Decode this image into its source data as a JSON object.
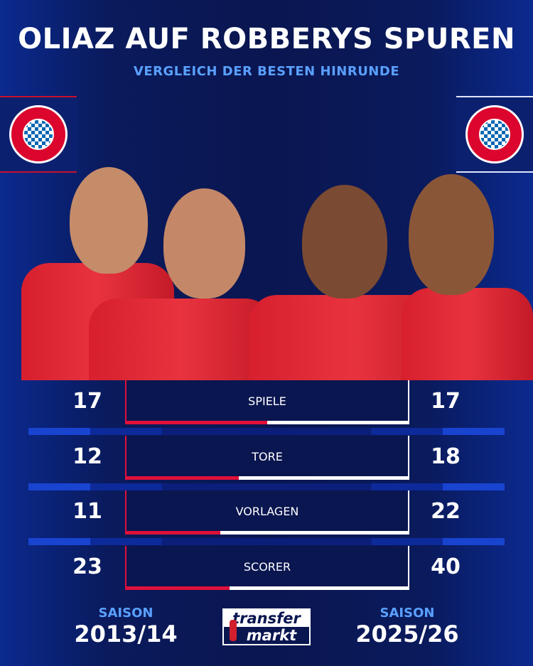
{
  "header": {
    "title": "OLIAZ AUF ROBBERYS SPUREN",
    "subtitle": "VERGLEICH DER BESTEN HINRUNDE"
  },
  "logos": {
    "left": "FC BAYERN MÜNCHEN",
    "right": "FC BAYERN MÜNCHEN"
  },
  "colors": {
    "left_accent": "#e0103a",
    "right_accent": "#ffffff",
    "background": "#0a1650",
    "subtitle": "#5aa0ff"
  },
  "stats": [
    {
      "label": "SPIELE",
      "left": 17,
      "right": 17,
      "left_share": 0.5
    },
    {
      "label": "TORE",
      "left": 12,
      "right": 18,
      "left_share": 0.4
    },
    {
      "label": "VORLAGEN",
      "left": 11,
      "right": 22,
      "left_share": 0.333
    },
    {
      "label": "SCORER",
      "left": 23,
      "right": 40,
      "left_share": 0.365
    }
  ],
  "footer": {
    "left_season_label": "SAISON",
    "left_season": "2013/14",
    "right_season_label": "SAISON",
    "right_season": "2025/26",
    "brand_top": "transfer",
    "brand_bottom": "markt"
  }
}
